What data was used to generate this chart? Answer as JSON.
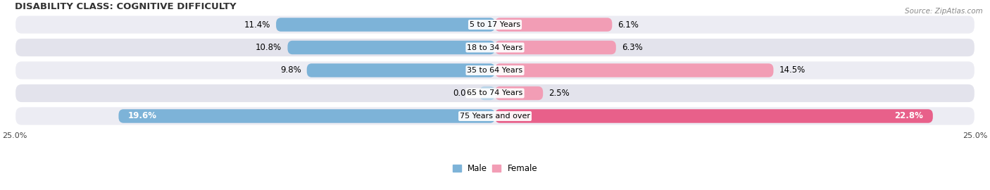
{
  "title": "DISABILITY CLASS: COGNITIVE DIFFICULTY",
  "source": "Source: ZipAtlas.com",
  "categories": [
    "5 to 17 Years",
    "18 to 34 Years",
    "35 to 64 Years",
    "65 to 74 Years",
    "75 Years and over"
  ],
  "male_values": [
    11.4,
    10.8,
    9.8,
    0.0,
    19.6
  ],
  "female_values": [
    6.1,
    6.3,
    14.5,
    2.5,
    22.8
  ],
  "male_color": "#7db3d8",
  "female_color": "#f29db5",
  "male_color_pale": "#b8d4e8",
  "female_color_pale": "#f8c8d8",
  "male_color_bright": "#5a9ec8",
  "female_color_bright": "#e8608a",
  "row_bg_light": "#ececf3",
  "row_bg_dark": "#e3e3ec",
  "xlim": 25.0,
  "label_fontsize": 8.5,
  "title_fontsize": 9.5,
  "legend_fontsize": 8.5,
  "axis_label_fontsize": 8,
  "category_fontsize": 8
}
